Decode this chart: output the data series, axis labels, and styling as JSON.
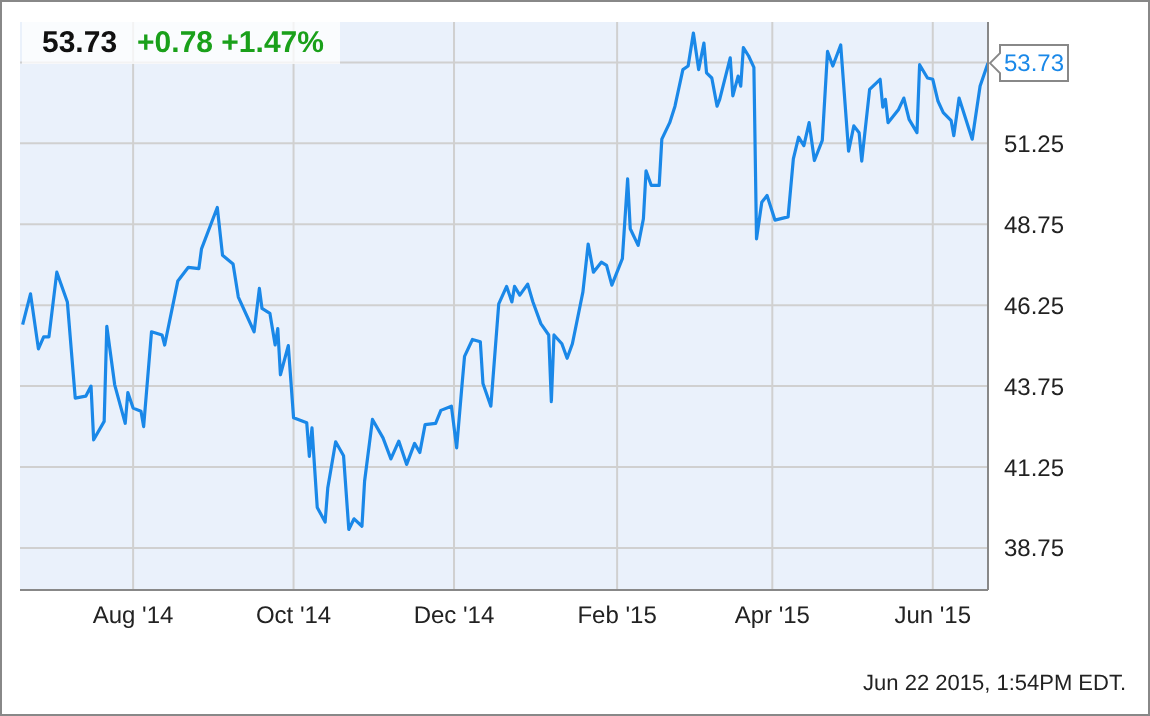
{
  "chart_data": {
    "type": "line",
    "title": "53.73",
    "subtitle": "+0.78 +1.47%",
    "x": [
      "2014-06-20",
      "2014-06-23",
      "2014-06-26",
      "2014-06-28",
      "2014-06-30",
      "2014-07-03",
      "2014-07-07",
      "2014-07-10",
      "2014-07-14",
      "2014-07-16",
      "2014-07-17",
      "2014-07-21",
      "2014-07-22",
      "2014-07-25",
      "2014-07-29",
      "2014-07-30",
      "2014-08-01",
      "2014-08-04",
      "2014-08-05",
      "2014-08-08",
      "2014-08-12",
      "2014-08-13",
      "2014-08-18",
      "2014-08-22",
      "2014-08-26",
      "2014-08-27",
      "2014-09-02",
      "2014-09-04",
      "2014-09-08",
      "2014-09-10",
      "2014-09-16",
      "2014-09-18",
      "2014-09-19",
      "2014-09-22",
      "2014-09-24",
      "2014-09-25",
      "2014-09-26",
      "2014-09-29",
      "2014-10-01",
      "2014-10-06",
      "2014-10-07",
      "2014-10-08",
      "2014-10-10",
      "2014-10-13",
      "2014-10-14",
      "2014-10-17",
      "2014-10-20",
      "2014-10-22",
      "2014-10-24",
      "2014-10-27",
      "2014-10-28",
      "2014-10-31",
      "2014-11-04",
      "2014-11-07",
      "2014-11-10",
      "2014-11-13",
      "2014-11-16",
      "2014-11-18",
      "2014-11-20",
      "2014-11-24",
      "2014-11-26",
      "2014-11-30",
      "2014-12-02",
      "2014-12-04",
      "2014-12-05",
      "2014-12-08",
      "2014-12-11",
      "2014-12-12",
      "2014-12-15",
      "2014-12-18",
      "2014-12-21",
      "2014-12-23",
      "2014-12-24",
      "2014-12-26",
      "2014-12-29",
      "2014-12-31",
      "2015-01-03",
      "2015-01-06",
      "2015-01-07",
      "2015-01-08",
      "2015-01-11",
      "2015-01-13",
      "2015-01-15",
      "2015-01-19",
      "2015-01-21",
      "2015-01-23",
      "2015-01-26",
      "2015-01-28",
      "2015-01-30",
      "2015-02-03",
      "2015-02-05",
      "2015-02-06",
      "2015-02-09",
      "2015-02-11",
      "2015-02-12",
      "2015-02-14",
      "2015-02-17",
      "2015-02-18",
      "2015-02-21",
      "2015-02-23",
      "2015-02-26",
      "2015-02-28",
      "2015-03-02",
      "2015-03-04",
      "2015-03-06",
      "2015-03-07",
      "2015-03-09",
      "2015-03-11",
      "2015-03-12",
      "2015-03-16",
      "2015-03-17",
      "2015-03-19",
      "2015-03-20",
      "2015-03-21",
      "2015-03-23",
      "2015-03-25",
      "2015-03-26",
      "2015-03-28",
      "2015-03-30",
      "2015-04-02",
      "2015-04-07",
      "2015-04-09",
      "2015-04-11",
      "2015-04-13",
      "2015-04-15",
      "2015-04-17",
      "2015-04-20",
      "2015-04-22",
      "2015-04-24",
      "2015-04-27",
      "2015-04-30",
      "2015-05-02",
      "2015-05-04",
      "2015-05-05",
      "2015-05-08",
      "2015-05-12",
      "2015-05-13",
      "2015-05-14",
      "2015-05-15",
      "2015-05-19",
      "2015-05-21",
      "2015-05-23",
      "2015-05-26",
      "2015-05-27",
      "2015-05-30",
      "2015-06-01",
      "2015-06-03",
      "2015-06-05",
      "2015-06-08",
      "2015-06-09",
      "2015-06-11",
      "2015-06-16",
      "2015-06-19",
      "2015-06-22"
    ],
    "series": [
      {
        "color": "#1a88e8",
        "values": [
          45.65,
          46.6,
          44.9,
          45.27,
          45.27,
          47.27,
          46.35,
          43.38,
          43.44,
          43.75,
          42.09,
          42.66,
          45.6,
          43.79,
          42.6,
          43.55,
          43.07,
          42.97,
          42.5,
          45.43,
          45.33,
          45.02,
          47.0,
          47.42,
          47.38,
          47.99,
          49.27,
          47.79,
          47.52,
          46.5,
          45.43,
          46.77,
          46.15,
          46.0,
          45.02,
          45.53,
          44.1,
          45.0,
          42.77,
          42.62,
          41.58,
          42.46,
          40.0,
          39.55,
          40.6,
          42.03,
          41.6,
          39.32,
          39.65,
          39.42,
          40.81,
          42.72,
          42.15,
          41.5,
          42.05,
          41.33,
          41.98,
          41.7,
          42.56,
          42.6,
          43.0,
          43.13,
          41.84,
          43.75,
          44.67,
          45.19,
          45.12,
          43.83,
          43.13,
          46.29,
          46.83,
          46.35,
          46.83,
          46.56,
          46.9,
          46.35,
          45.68,
          45.33,
          43.27,
          45.33,
          45.06,
          44.61,
          45.06,
          46.66,
          48.14,
          47.27,
          47.58,
          47.48,
          46.87,
          47.69,
          50.15,
          48.61,
          48.1,
          48.92,
          50.4,
          49.95,
          49.95,
          51.38,
          51.89,
          52.4,
          53.53,
          53.64,
          54.66,
          53.53,
          54.35,
          53.43,
          53.27,
          52.4,
          52.61,
          53.89,
          52.72,
          53.33,
          53.02,
          54.21,
          53.95,
          53.6,
          48.3,
          49.43,
          49.64,
          48.88,
          48.98,
          50.77,
          51.44,
          51.18,
          51.89,
          50.72,
          51.34,
          54.09,
          53.64,
          54.29,
          51.01,
          51.79,
          51.58,
          50.7,
          52.92,
          53.23,
          52.37,
          52.61,
          51.89,
          52.3,
          52.65,
          51.99,
          51.58,
          53.68,
          53.27,
          53.23,
          52.55,
          52.2,
          51.95,
          51.49,
          52.65,
          51.38,
          53.02,
          53.73
        ]
      }
    ],
    "xlim": [
      "2014-06-19",
      "2015-06-22"
    ],
    "xticks": [
      {
        "value": "2014-08-01",
        "label": "Aug '14"
      },
      {
        "value": "2014-10-01",
        "label": "Oct '14"
      },
      {
        "value": "2014-12-01",
        "label": "Dec '14"
      },
      {
        "value": "2015-02-01",
        "label": "Feb '15"
      },
      {
        "value": "2015-04-01",
        "label": "Apr '15"
      },
      {
        "value": "2015-06-01",
        "label": "Jun '15"
      }
    ],
    "ylim": [
      37.45,
      55.0
    ],
    "yticks": [
      38.75,
      41.25,
      43.75,
      46.25,
      48.75,
      51.25,
      {
        "value": 53.75,
        "label": null
      }
    ],
    "grid": true,
    "marker": "none",
    "line_style": "solid",
    "annotations": [
      {
        "text": "53.73",
        "x": "2015-06-22",
        "y": 53.73
      },
      "Jun 22 2015, 1:54PM EDT."
    ]
  }
}
